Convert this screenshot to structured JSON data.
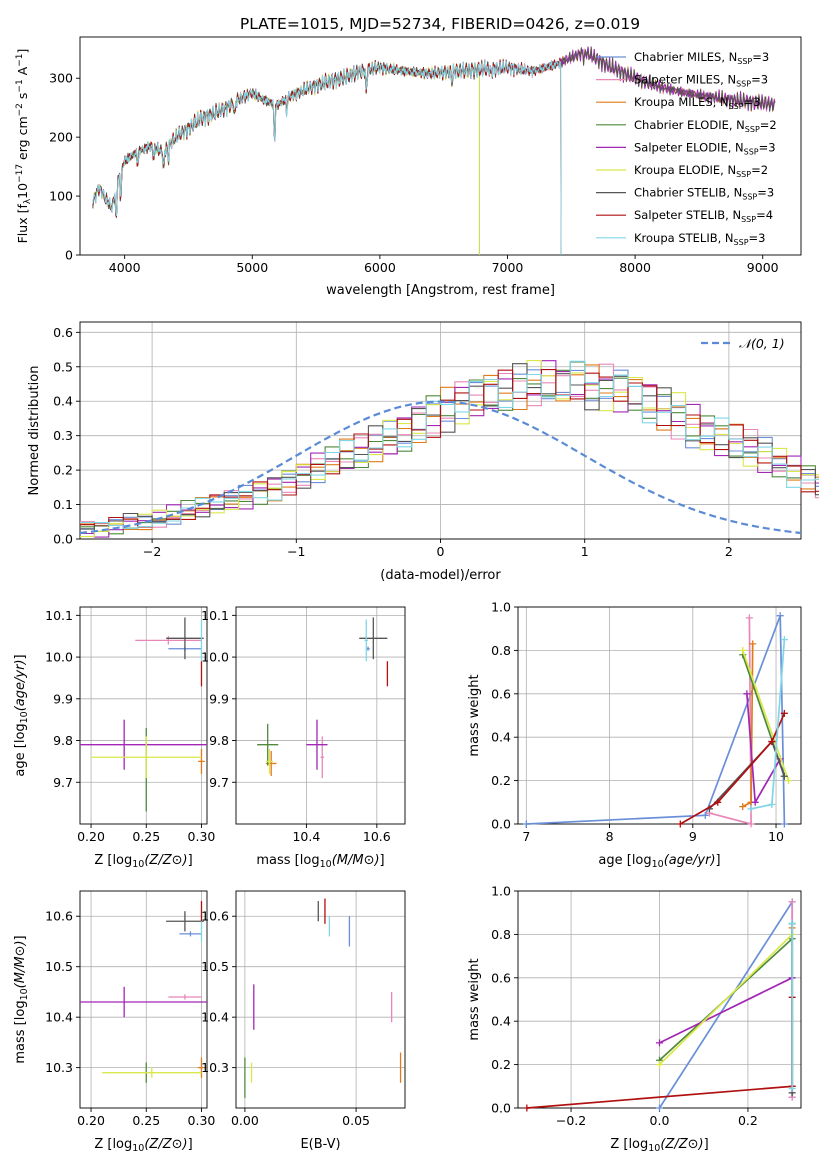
{
  "figure_title": "PLATE=1015, MJD=52734, FIBERID=0426, z=0.019",
  "colors": {
    "Chabrier MILES": "#6a8fd8",
    "Salpeter MILES": "#e887b8",
    "Kroupa MILES": "#e07b1a",
    "Chabrier ELODIE": "#4f8a3c",
    "Salpeter ELODIE": "#a227b5",
    "Kroupa ELODIE": "#d9e84a",
    "Chabrier STELIB": "#555555",
    "Salpeter STELIB": "#b01010",
    "Kroupa STELIB": "#7fd6e6",
    "gauss": "#5b8bd6",
    "grid": "#b0b0b0"
  },
  "chart_data": [
    {
      "id": "spectrum",
      "type": "line",
      "title": "PLATE=1015, MJD=52734, FIBERID=0426, z=0.019",
      "xlabel": "wavelength [Angstrom, rest frame]",
      "ylabel_parts": [
        "Flux [f",
        "λ",
        "10",
        "−17",
        " erg cm",
        "−2",
        " s",
        "−1",
        " A",
        "−1",
        "]"
      ],
      "xlim": [
        3650,
        9300
      ],
      "ylim": [
        0,
        370
      ],
      "xticks": [
        4000,
        5000,
        6000,
        7000,
        8000,
        9000
      ],
      "yticks": [
        0,
        100,
        200,
        300
      ],
      "series": [
        {
          "name": "Chabrier MILES",
          "nssp": 3
        },
        {
          "name": "Salpeter MILES",
          "nssp": 3
        },
        {
          "name": "Kroupa MILES",
          "nssp": 3
        },
        {
          "name": "Chabrier ELODIE",
          "nssp": 2
        },
        {
          "name": "Salpeter ELODIE",
          "nssp": 3
        },
        {
          "name": "Kroupa ELODIE",
          "nssp": 2
        },
        {
          "name": "Chabrier STELIB",
          "nssp": 3
        },
        {
          "name": "Salpeter STELIB",
          "nssp": 4
        },
        {
          "name": "Kroupa STELIB",
          "nssp": 3
        }
      ],
      "legend_placement": "right",
      "continuum": [
        [
          3750,
          90
        ],
        [
          3800,
          115
        ],
        [
          3850,
          95
        ],
        [
          3900,
          80
        ],
        [
          3950,
          130
        ],
        [
          4000,
          160
        ],
        [
          4100,
          175
        ],
        [
          4200,
          185
        ],
        [
          4300,
          175
        ],
        [
          4400,
          200
        ],
        [
          4500,
          215
        ],
        [
          4600,
          232
        ],
        [
          4700,
          240
        ],
        [
          4800,
          250
        ],
        [
          4900,
          265
        ],
        [
          5000,
          275
        ],
        [
          5100,
          262
        ],
        [
          5200,
          255
        ],
        [
          5300,
          270
        ],
        [
          5500,
          288
        ],
        [
          5700,
          300
        ],
        [
          5900,
          315
        ],
        [
          6000,
          318
        ],
        [
          6200,
          312
        ],
        [
          6400,
          308
        ],
        [
          6600,
          312
        ],
        [
          6800,
          315
        ],
        [
          7000,
          318
        ],
        [
          7200,
          312
        ],
        [
          7400,
          325
        ],
        [
          7500,
          335
        ],
        [
          7600,
          345
        ],
        [
          7800,
          320
        ],
        [
          8000,
          300
        ],
        [
          8200,
          285
        ],
        [
          8400,
          275
        ],
        [
          8600,
          268
        ],
        [
          8800,
          262
        ],
        [
          9000,
          258
        ],
        [
          9100,
          255
        ]
      ],
      "absorption_lines": [
        [
          3934,
          -60
        ],
        [
          3969,
          -50
        ],
        [
          4102,
          -25
        ],
        [
          4227,
          -20
        ],
        [
          4305,
          -35
        ],
        [
          4341,
          -25
        ],
        [
          4861,
          -25
        ],
        [
          5175,
          -70
        ],
        [
          5270,
          -25
        ],
        [
          5893,
          -40
        ],
        [
          6563,
          -20
        ],
        [
          6870,
          -10
        ],
        [
          7600,
          -15
        ]
      ],
      "line_ends": {
        "Kroupa ELODIE": 6780,
        "Chabrier ELODIE": 6780,
        "Salpeter STELIB": 7420,
        "Kroupa STELIB": 7420
      }
    },
    {
      "id": "residuals",
      "type": "line",
      "xlabel": "(data-model)/error",
      "ylabel": "Normed distribution",
      "xlim": [
        -2.5,
        2.5
      ],
      "ylim": [
        0,
        0.63
      ],
      "xticks": [
        -2,
        -1,
        0,
        1,
        2
      ],
      "yticks": [
        0.0,
        0.1,
        0.2,
        0.3,
        0.4,
        0.5,
        0.6
      ],
      "legend": "𝒩(0, 1)",
      "legend_placement": "top-right",
      "bin_width": 0.1,
      "histogram_envelope": [
        0.03,
        0.03,
        0.04,
        0.05,
        0.05,
        0.06,
        0.07,
        0.08,
        0.09,
        0.1,
        0.11,
        0.12,
        0.14,
        0.15,
        0.17,
        0.19,
        0.21,
        0.22,
        0.24,
        0.25,
        0.27,
        0.29,
        0.31,
        0.34,
        0.36,
        0.38,
        0.4,
        0.41,
        0.42,
        0.43,
        0.44,
        0.45,
        0.46,
        0.45,
        0.46,
        0.44,
        0.44,
        0.43,
        0.42,
        0.4,
        0.38,
        0.36,
        0.33,
        0.31,
        0.29,
        0.28,
        0.26,
        0.24,
        0.22,
        0.2,
        0.18,
        0.16,
        0.14,
        0.13,
        0.12,
        0.1,
        0.09,
        0.08,
        0.07,
        0.06,
        0.05,
        0.05,
        0.04,
        0.04,
        0.03,
        0.03,
        0.03,
        0.03,
        0.03,
        0.02
      ]
    },
    {
      "id": "age_vs_Z",
      "type": "scatter",
      "xlabel": "Z [log10(Z/Z⊙)]",
      "ylabel": "age  [log10(age/yr)]",
      "xlim": [
        0.19,
        0.305
      ],
      "ylim": [
        9.6,
        10.12
      ],
      "xticks": [
        0.2,
        0.25,
        0.3
      ],
      "yticks": [
        9.7,
        9.8,
        9.9,
        10.0,
        10.1
      ],
      "points": [
        {
          "s": "Chabrier MILES",
          "x": 0.285,
          "xe": 0.015,
          "y": 10.02,
          "ye": 0.005
        },
        {
          "s": "Salpeter MILES",
          "x": 0.27,
          "xe": 0.03,
          "y": 10.04,
          "ye": 0.01
        },
        {
          "s": "Kroupa MILES",
          "x": 0.3,
          "xe": 0.003,
          "y": 9.75,
          "ye": 0.03
        },
        {
          "s": "Chabrier ELODIE",
          "x": 0.25,
          "xe": 0.0,
          "y": 9.73,
          "ye": 0.1
        },
        {
          "s": "Salpeter ELODIE",
          "x": 0.23,
          "xe": 0.08,
          "y": 9.79,
          "ye": 0.06
        },
        {
          "s": "Kroupa ELODIE",
          "x": 0.25,
          "xe": 0.05,
          "y": 9.76,
          "ye": 0.05
        },
        {
          "s": "Chabrier STELIB",
          "x": 0.285,
          "xe": 0.017,
          "y": 10.045,
          "ye": 0.05
        },
        {
          "s": "Salpeter STELIB",
          "x": 0.3,
          "xe": 0.0,
          "y": 9.96,
          "ye": 0.03
        },
        {
          "s": "Kroupa STELIB",
          "x": 0.3,
          "xe": 0.0,
          "y": 10.04,
          "ye": 0.05
        }
      ]
    },
    {
      "id": "age_vs_mass",
      "type": "scatter",
      "xlabel": "mass [log10(M/M⊙)]",
      "ylabel": "",
      "xlim": [
        10.2,
        10.68
      ],
      "ylim": [
        9.6,
        10.12
      ],
      "xticks": [
        10.4,
        10.6
      ],
      "yticks": [
        9.7,
        9.8,
        9.9,
        10.0,
        10.1
      ],
      "points": [
        {
          "s": "Chabrier MILES",
          "x": 10.575,
          "xe": 0.005,
          "y": 10.02,
          "ye": 0.005
        },
        {
          "s": "Salpeter MILES",
          "x": 10.445,
          "xe": 0.005,
          "y": 9.76,
          "ye": 0.05
        },
        {
          "s": "Kroupa MILES",
          "x": 10.3,
          "xe": 0.015,
          "y": 9.745,
          "ye": 0.03
        },
        {
          "s": "Chabrier ELODIE",
          "x": 10.29,
          "xe": 0.03,
          "y": 9.79,
          "ye": 0.05
        },
        {
          "s": "Salpeter ELODIE",
          "x": 10.43,
          "xe": 0.03,
          "y": 9.79,
          "ye": 0.06
        },
        {
          "s": "Kroupa ELODIE",
          "x": 10.295,
          "xe": 0.01,
          "y": 9.75,
          "ye": 0.03
        },
        {
          "s": "Chabrier STELIB",
          "x": 10.59,
          "xe": 0.04,
          "y": 10.045,
          "ye": 0.05
        },
        {
          "s": "Salpeter STELIB",
          "x": 10.63,
          "xe": 0.0,
          "y": 9.96,
          "ye": 0.03
        },
        {
          "s": "Kroupa STELIB",
          "x": 10.57,
          "xe": 0.005,
          "y": 10.04,
          "ye": 0.05
        }
      ]
    },
    {
      "id": "weight_vs_age",
      "type": "line",
      "xlabel": "age  [log10(age/yr)]",
      "ylabel": "mass weight",
      "xlim": [
        6.9,
        10.3
      ],
      "ylim": [
        0.0,
        1.0
      ],
      "xticks": [
        7,
        8,
        9,
        10
      ],
      "yticks": [
        0.0,
        0.2,
        0.4,
        0.6,
        0.8,
        1.0
      ],
      "series": [
        {
          "s": "Chabrier MILES",
          "x": [
            7.0,
            9.15,
            10.05,
            10.1
          ],
          "y": [
            0.0,
            0.04,
            0.96,
            0.0
          ]
        },
        {
          "s": "Salpeter MILES",
          "x": [
            9.2,
            9.7,
            9.68
          ],
          "y": [
            0.05,
            0.0,
            0.95
          ]
        },
        {
          "s": "Kroupa MILES",
          "x": [
            9.6,
            9.7,
            9.72
          ],
          "y": [
            0.08,
            0.1,
            0.83
          ]
        },
        {
          "s": "Chabrier ELODIE",
          "x": [
            9.6,
            10.1
          ],
          "y": [
            0.78,
            0.22
          ]
        },
        {
          "s": "Salpeter ELODIE",
          "x": [
            9.65,
            9.75,
            10.05
          ],
          "y": [
            0.6,
            0.1,
            0.3
          ]
        },
        {
          "s": "Kroupa ELODIE",
          "x": [
            9.6,
            10.15
          ],
          "y": [
            0.8,
            0.2
          ]
        },
        {
          "s": "Chabrier STELIB",
          "x": [
            9.2,
            9.95,
            10.1
          ],
          "y": [
            0.07,
            0.38,
            0.22
          ]
        },
        {
          "s": "Salpeter STELIB",
          "x": [
            8.85,
            9.3,
            9.95,
            10.1
          ],
          "y": [
            0.0,
            0.1,
            0.38,
            0.51
          ]
        },
        {
          "s": "Kroupa STELIB",
          "x": [
            9.7,
            9.95,
            10.1
          ],
          "y": [
            0.07,
            0.09,
            0.85
          ]
        }
      ]
    },
    {
      "id": "mass_vs_Z",
      "type": "scatter",
      "xlabel": "Z [log10(Z/Z⊙)]",
      "ylabel": "mass [log10(M/M⊙)]",
      "xlim": [
        0.19,
        0.305
      ],
      "ylim": [
        10.22,
        10.65
      ],
      "xticks": [
        0.2,
        0.25,
        0.3
      ],
      "yticks": [
        10.3,
        10.4,
        10.5,
        10.6
      ],
      "points": [
        {
          "s": "Chabrier MILES",
          "x": 0.29,
          "xe": 0.01,
          "y": 10.565,
          "ye": 0.005
        },
        {
          "s": "Salpeter MILES",
          "x": 0.285,
          "xe": 0.015,
          "y": 10.44,
          "ye": 0.005
        },
        {
          "s": "Kroupa MILES",
          "x": 0.3,
          "xe": 0.003,
          "y": 10.3,
          "ye": 0.02
        },
        {
          "s": "Chabrier ELODIE",
          "x": 0.25,
          "xe": 0.0,
          "y": 10.29,
          "ye": 0.02
        },
        {
          "s": "Salpeter ELODIE",
          "x": 0.23,
          "xe": 0.08,
          "y": 10.43,
          "ye": 0.03
        },
        {
          "s": "Kroupa ELODIE",
          "x": 0.255,
          "xe": 0.045,
          "y": 10.29,
          "ye": 0.01
        },
        {
          "s": "Chabrier STELIB",
          "x": 0.285,
          "xe": 0.017,
          "y": 10.59,
          "ye": 0.02
        },
        {
          "s": "Salpeter STELIB",
          "x": 0.3,
          "xe": 0.0,
          "y": 10.61,
          "ye": 0.02
        },
        {
          "s": "Kroupa STELIB",
          "x": 0.3,
          "xe": 0.0,
          "y": 10.57,
          "ye": 0.02
        }
      ]
    },
    {
      "id": "mass_vs_ebv",
      "type": "scatter",
      "xlabel": "E(B-V)",
      "ylabel": "",
      "xlim": [
        -0.004,
        0.072
      ],
      "ylim": [
        10.22,
        10.65
      ],
      "xticks": [
        0.0,
        0.05
      ],
      "yticks": [
        10.3,
        10.4,
        10.5,
        10.6
      ],
      "points": [
        {
          "s": "Chabrier MILES",
          "x": 0.047,
          "xe": 0.0,
          "y": 10.57,
          "ye": 0.03
        },
        {
          "s": "Salpeter MILES",
          "x": 0.066,
          "xe": 0.0,
          "y": 10.42,
          "ye": 0.03
        },
        {
          "s": "Kroupa MILES",
          "x": 0.07,
          "xe": 0.0,
          "y": 10.3,
          "ye": 0.03
        },
        {
          "s": "Chabrier ELODIE",
          "x": 0.0,
          "xe": 0.0,
          "y": 10.28,
          "ye": 0.04
        },
        {
          "s": "Salpeter ELODIE",
          "x": 0.004,
          "xe": 0.0,
          "y": 10.42,
          "ye": 0.045
        },
        {
          "s": "Kroupa ELODIE",
          "x": 0.003,
          "xe": 0.0,
          "y": 10.29,
          "ye": 0.02
        },
        {
          "s": "Chabrier STELIB",
          "x": 0.033,
          "xe": 0.0,
          "y": 10.61,
          "ye": 0.02
        },
        {
          "s": "Salpeter STELIB",
          "x": 0.036,
          "xe": 0.0,
          "y": 10.61,
          "ye": 0.025
        },
        {
          "s": "Kroupa STELIB",
          "x": 0.038,
          "xe": 0.0,
          "y": 10.58,
          "ye": 0.02
        }
      ]
    },
    {
      "id": "weight_vs_Z",
      "type": "line",
      "xlabel": "Z [log10(Z/Z⊙)]",
      "ylabel": "mass weight",
      "xlim": [
        -0.32,
        0.32
      ],
      "ylim": [
        0.0,
        1.0
      ],
      "xticks": [
        -0.2,
        0.0,
        0.2
      ],
      "yticks": [
        0.0,
        0.2,
        0.4,
        0.6,
        0.8,
        1.0
      ],
      "series": [
        {
          "s": "Chabrier MILES",
          "x": [
            0.0,
            0.3,
            0.3
          ],
          "y": [
            0.0,
            0.95,
            0.05
          ]
        },
        {
          "s": "Salpeter MILES",
          "x": [
            0.3,
            0.3
          ],
          "y": [
            0.05,
            0.95
          ]
        },
        {
          "s": "Kroupa MILES",
          "x": [
            0.3,
            0.3
          ],
          "y": [
            0.1,
            0.83
          ]
        },
        {
          "s": "Chabrier ELODIE",
          "x": [
            0.0,
            0.3
          ],
          "y": [
            0.22,
            0.78
          ]
        },
        {
          "s": "Salpeter ELODIE",
          "x": [
            0.0,
            0.3
          ],
          "y": [
            0.3,
            0.6
          ]
        },
        {
          "s": "Kroupa ELODIE",
          "x": [
            0.0,
            0.3
          ],
          "y": [
            0.2,
            0.8
          ]
        },
        {
          "s": "Chabrier STELIB",
          "x": [
            0.3,
            0.3
          ],
          "y": [
            0.07,
            0.85
          ]
        },
        {
          "s": "Salpeter STELIB",
          "x": [
            -0.3,
            0.3,
            0.3
          ],
          "y": [
            0.0,
            0.1,
            0.51
          ]
        },
        {
          "s": "Kroupa STELIB",
          "x": [
            0.3,
            0.3
          ],
          "y": [
            0.09,
            0.85
          ]
        }
      ]
    }
  ]
}
